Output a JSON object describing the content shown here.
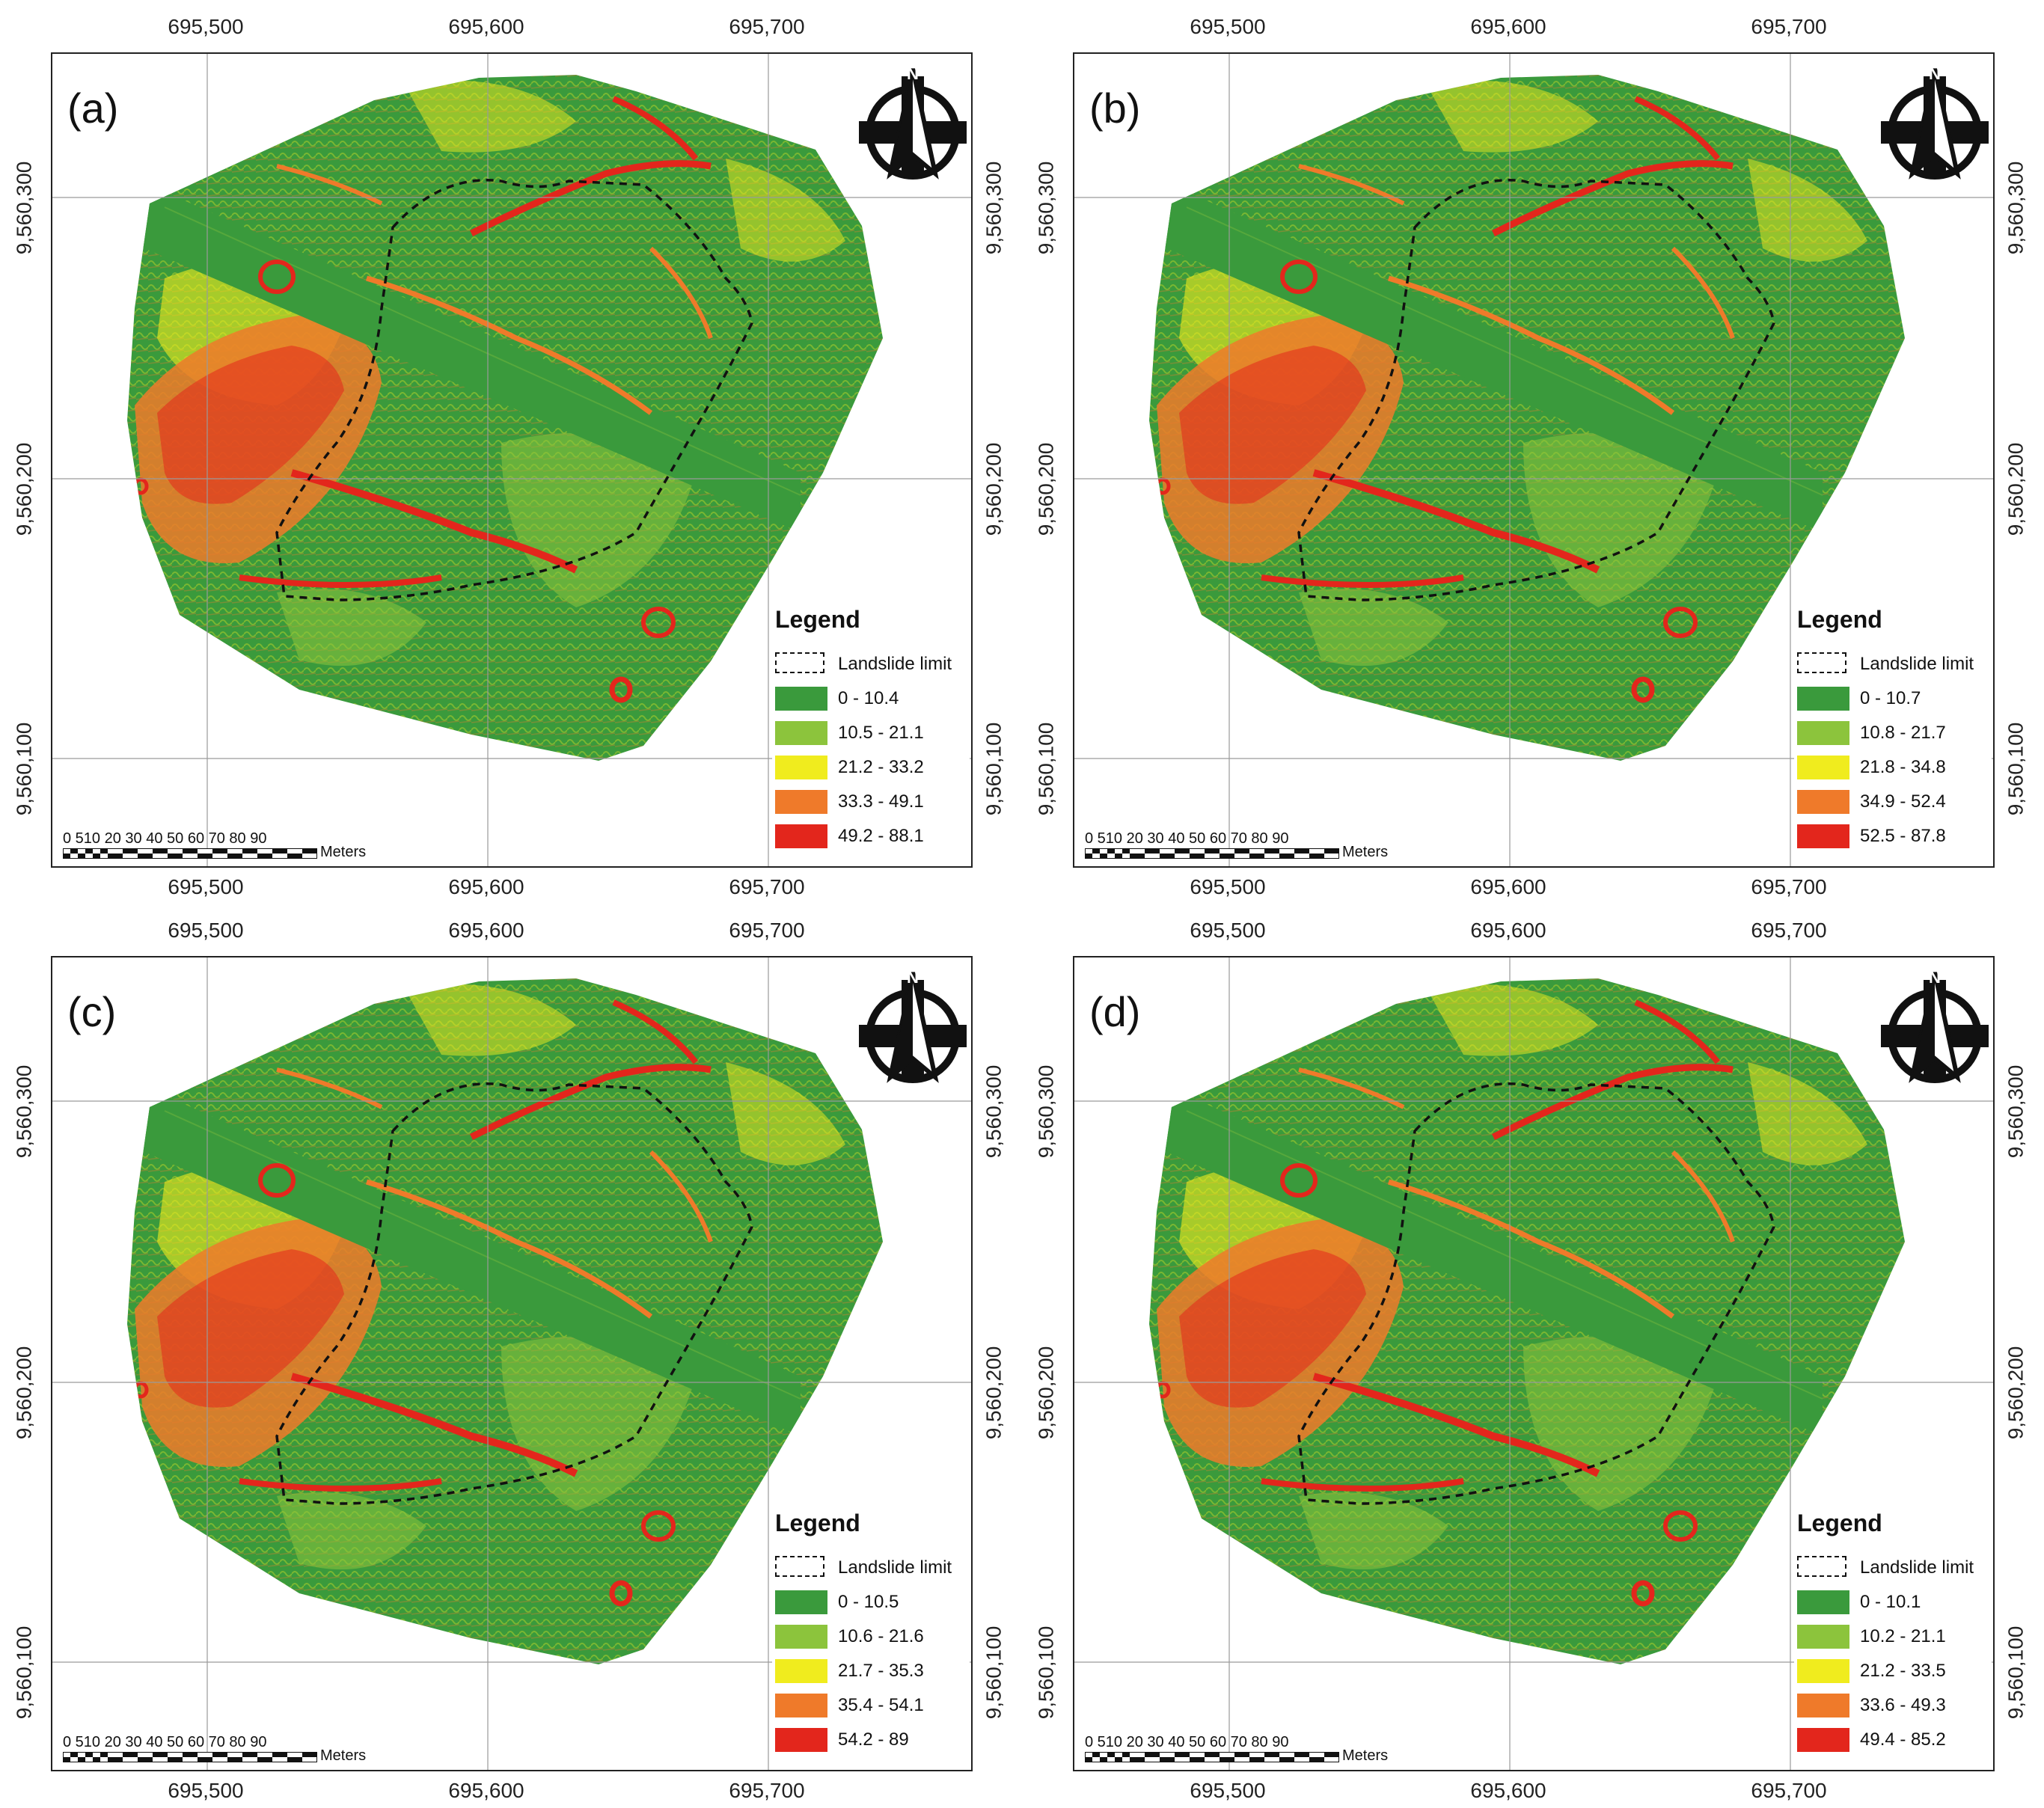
{
  "colors": {
    "class1": "#3a9a3c",
    "class2": "#8cc43c",
    "class3": "#f0ec1e",
    "class4": "#ef7a2a",
    "class5": "#e3261c",
    "landslide_limit": "#111111",
    "grid": "#9a9a9a"
  },
  "axes": {
    "x_ticks": [
      "695,500",
      "695,600",
      "695,700"
    ],
    "y_ticks": [
      "9,560,300",
      "9,560,200",
      "9,560,100"
    ]
  },
  "legend_title": "Legend",
  "landslide_label": "Landslide limit",
  "scale": {
    "numbers": "0 510 20 30 40 50 60 70 80 90",
    "unit": "Meters"
  },
  "north_icon": "north-arrow-icon",
  "north_letter": "N",
  "panels": [
    {
      "label": "(a)",
      "classes": [
        "0 - 10.4",
        "10.5 - 21.1",
        "21.2 - 33.2",
        "33.3 - 49.1",
        "49.2 - 88.1"
      ]
    },
    {
      "label": "(b)",
      "classes": [
        "0 - 10.7",
        "10.8 - 21.7",
        "21.8 - 34.8",
        "34.9 - 52.4",
        "52.5 - 87.8"
      ]
    },
    {
      "label": "(c)",
      "classes": [
        "0 - 10.5",
        "10.6 - 21.6",
        "21.7 - 35.3",
        "35.4 - 54.1",
        "54.2 - 89"
      ]
    },
    {
      "label": "(d)",
      "classes": [
        "0 - 10.1",
        "10.2 - 21.1",
        "21.2 - 33.5",
        "33.6 - 49.3",
        "49.4 - 85.2"
      ]
    }
  ]
}
